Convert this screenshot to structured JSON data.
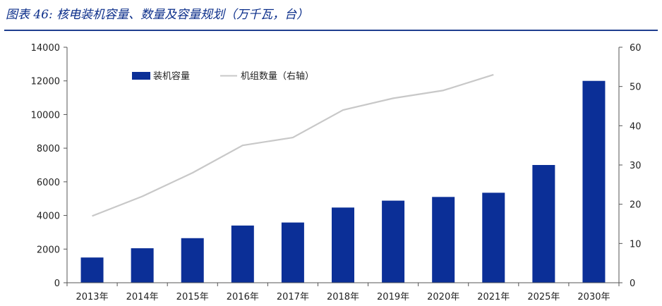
{
  "header": {
    "title": "图表 46: 核电装机容量、数量及容量规划（万千瓦，台）"
  },
  "chart_data": {
    "type": "bar",
    "categories": [
      "2013年",
      "2014年",
      "2015年",
      "2016年",
      "2017年",
      "2018年",
      "2019年",
      "2020年",
      "2021年",
      "2025年",
      "2030年"
    ],
    "series": [
      {
        "name": "装机容量",
        "type": "bar",
        "axis": "left",
        "color": "#0b2f97",
        "values": [
          1500,
          2050,
          2650,
          3400,
          3580,
          4470,
          4880,
          5100,
          5350,
          7000,
          12000
        ]
      },
      {
        "name": "机组数量（右轴）",
        "type": "line",
        "axis": "right",
        "color": "#c8c8c8",
        "values": [
          17,
          22,
          28,
          35,
          37,
          44,
          47,
          49,
          53,
          null,
          null
        ]
      }
    ],
    "left_axis": {
      "ylim": [
        0,
        14000
      ],
      "ticks": [
        "0",
        "2000",
        "4000",
        "6000",
        "8000",
        "10000",
        "12000",
        "14000"
      ]
    },
    "right_axis": {
      "ylim": [
        0,
        60
      ],
      "ticks": [
        "0",
        "10",
        "20",
        "30",
        "40",
        "50",
        "60"
      ]
    },
    "legend_position": "top-left"
  }
}
